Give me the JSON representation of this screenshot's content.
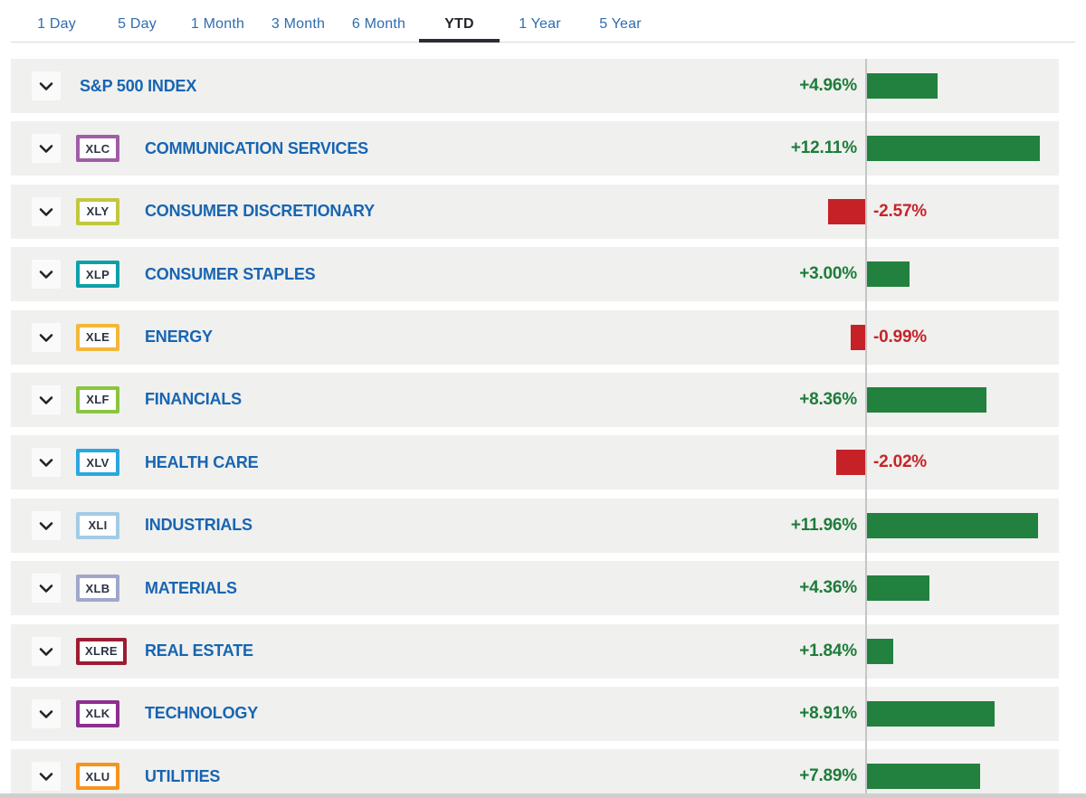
{
  "tabs": {
    "items": [
      {
        "label": "1 Day",
        "active": false
      },
      {
        "label": "5 Day",
        "active": false
      },
      {
        "label": "1 Month",
        "active": false
      },
      {
        "label": "3 Month",
        "active": false
      },
      {
        "label": "6 Month",
        "active": false
      },
      {
        "label": "YTD",
        "active": true
      },
      {
        "label": "1 Year",
        "active": false
      },
      {
        "label": "5 Year",
        "active": false
      }
    ]
  },
  "rows": [
    {
      "ticker": null,
      "badge_color": null,
      "name": "S&P 500 INDEX",
      "change": "+4.96%",
      "value": 4.96,
      "direction": "up"
    },
    {
      "ticker": "XLC",
      "badge_color": "#a05da6",
      "name": "COMMUNICATION SERVICES",
      "change": "+12.11%",
      "value": 12.11,
      "direction": "up"
    },
    {
      "ticker": "XLY",
      "badge_color": "#c2c83e",
      "name": "CONSUMER DISCRETIONARY",
      "change": "-2.57%",
      "value": -2.57,
      "direction": "down"
    },
    {
      "ticker": "XLP",
      "badge_color": "#0da0a9",
      "name": "CONSUMER STAPLES",
      "change": "+3.00%",
      "value": 3.0,
      "direction": "up"
    },
    {
      "ticker": "XLE",
      "badge_color": "#f3b73a",
      "name": "ENERGY",
      "change": "-0.99%",
      "value": -0.99,
      "direction": "down"
    },
    {
      "ticker": "XLF",
      "badge_color": "#8ac541",
      "name": "FINANCIALS",
      "change": "+8.36%",
      "value": 8.36,
      "direction": "up"
    },
    {
      "ticker": "XLV",
      "badge_color": "#2aa7e0",
      "name": "HEALTH CARE",
      "change": "-2.02%",
      "value": -2.02,
      "direction": "down"
    },
    {
      "ticker": "XLI",
      "badge_color": "#a3cbe6",
      "name": "INDUSTRIALS",
      "change": "+11.96%",
      "value": 11.96,
      "direction": "up"
    },
    {
      "ticker": "XLB",
      "badge_color": "#a0a7ca",
      "name": "MATERIALS",
      "change": "+4.36%",
      "value": 4.36,
      "direction": "up"
    },
    {
      "ticker": "XLRE",
      "badge_color": "#9d1c32",
      "name": "REAL ESTATE",
      "change": "+1.84%",
      "value": 1.84,
      "direction": "up"
    },
    {
      "ticker": "XLK",
      "badge_color": "#8d2f90",
      "name": "TECHNOLOGY",
      "change": "+8.91%",
      "value": 8.91,
      "direction": "up"
    },
    {
      "ticker": "XLU",
      "badge_color": "#f7941e",
      "name": "UTILITIES",
      "change": "+7.89%",
      "value": 7.89,
      "direction": "up"
    }
  ],
  "colors": {
    "positive": "#22813f",
    "negative": "#c52127",
    "positive_text": "#1d7c3a",
    "negative_text": "#c62429",
    "sector_link": "#1765b3",
    "tab_link": "#2e6daf",
    "tab_active": "#23262c",
    "row_background": "#f0f0ee",
    "axis_line": "#c6c6c6"
  },
  "chart_data": {
    "type": "bar",
    "orientation": "horizontal",
    "period": "YTD",
    "categories": [
      "S&P 500 INDEX",
      "COMMUNICATION SERVICES",
      "CONSUMER DISCRETIONARY",
      "CONSUMER STAPLES",
      "ENERGY",
      "FINANCIALS",
      "HEALTH CARE",
      "INDUSTRIALS",
      "MATERIALS",
      "REAL ESTATE",
      "TECHNOLOGY",
      "UTILITIES"
    ],
    "values": [
      4.96,
      12.11,
      -2.57,
      3.0,
      -0.99,
      8.36,
      -2.02,
      11.96,
      4.36,
      1.84,
      8.91,
      7.89
    ],
    "value_labels": [
      "+4.96%",
      "+12.11%",
      "-2.57%",
      "+3.00%",
      "-0.99%",
      "+8.36%",
      "-2.02%",
      "+11.96%",
      "+4.36%",
      "+1.84%",
      "+8.91%",
      "+7.89%"
    ],
    "baseline": 0,
    "positive_color": "#22813f",
    "negative_color": "#c52127"
  }
}
